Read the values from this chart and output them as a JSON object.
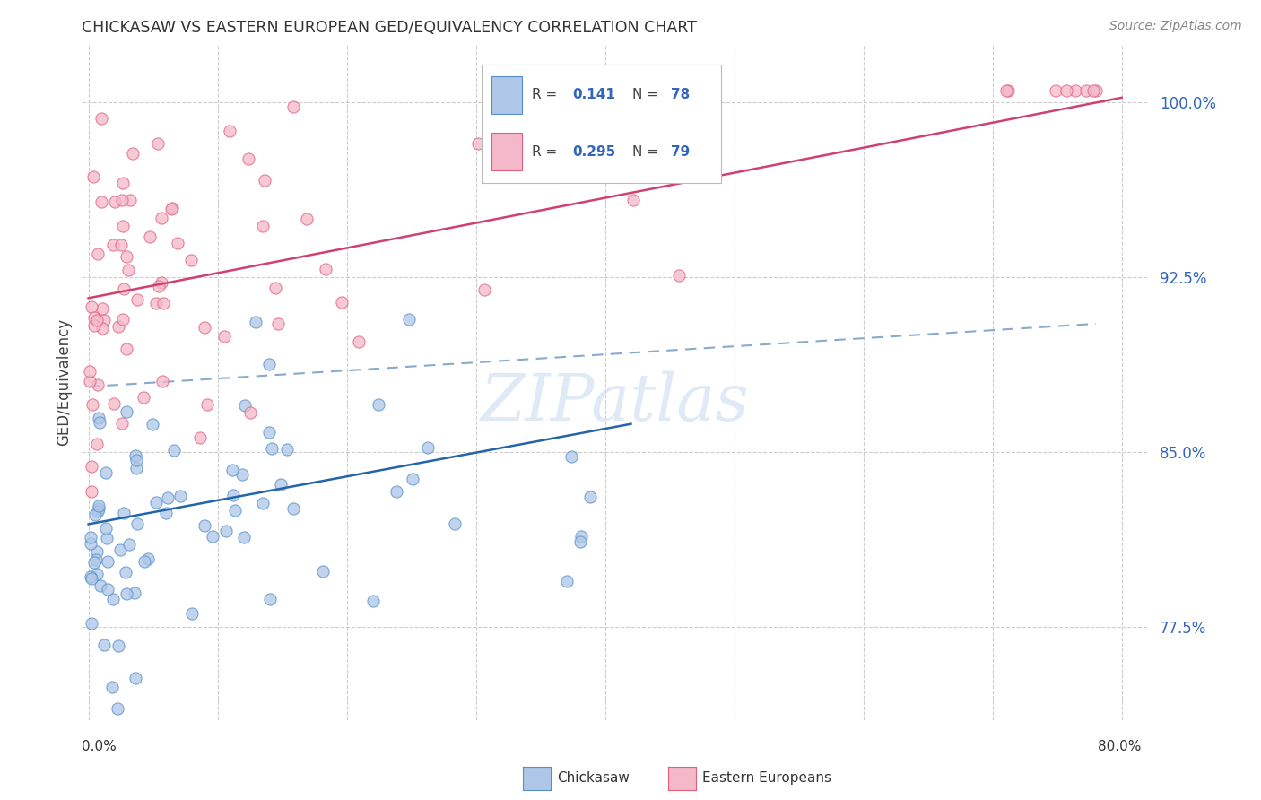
{
  "title": "CHICKASAW VS EASTERN EUROPEAN GED/EQUIVALENCY CORRELATION CHART",
  "source": "Source: ZipAtlas.com",
  "ylabel": "GED/Equivalency",
  "r_blue": 0.141,
  "n_blue": 78,
  "r_pink": 0.295,
  "n_pink": 79,
  "blue_scatter_color": "#aec6e8",
  "blue_edge_color": "#5590c8",
  "pink_scatter_color": "#f4b8c8",
  "pink_edge_color": "#e06080",
  "blue_line_color": "#2464a8",
  "pink_line_color": "#d04070",
  "ref_line_color": "#88aacc",
  "tick_color": "#3366bb",
  "ytick_vals": [
    0.775,
    0.85,
    0.925,
    1.0
  ],
  "ytick_labels": [
    "77.5%",
    "85.0%",
    "92.5%",
    "100.0%"
  ],
  "ymin": 0.735,
  "ymax": 1.025,
  "xmin": -0.005,
  "xmax": 0.82,
  "blue_trend_x": [
    0.0,
    0.42
  ],
  "blue_trend_y": [
    0.819,
    0.862
  ],
  "pink_trend_x": [
    0.0,
    0.8
  ],
  "pink_trend_y": [
    0.916,
    1.002
  ],
  "ref_line_x": [
    0.0,
    0.78
  ],
  "ref_line_y": [
    0.878,
    0.905
  ],
  "watermark": "ZIPatlas"
}
